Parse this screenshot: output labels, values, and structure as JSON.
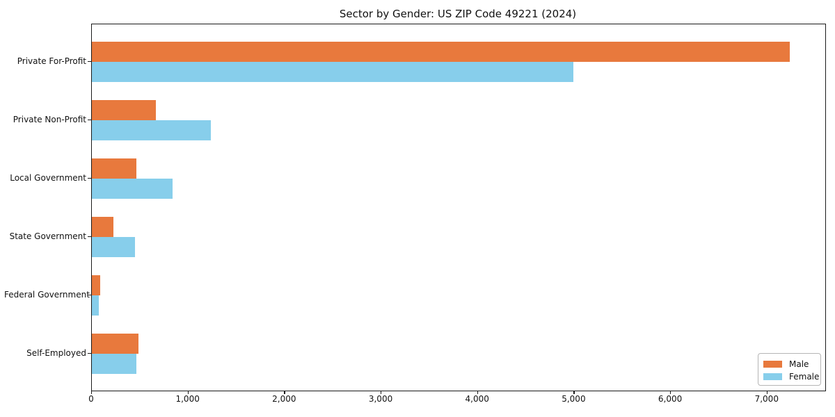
{
  "chart_data": {
    "type": "bar",
    "orientation": "horizontal",
    "title": "Sector by Gender: US ZIP Code 49221 (2024)",
    "categories": [
      "Private For-Profit",
      "Private Non-Profit",
      "Local Government",
      "State Government",
      "Federal Government",
      "Self-Employed"
    ],
    "series": [
      {
        "name": "Male",
        "color": "#e8793d",
        "values": [
          7230,
          660,
          460,
          220,
          85,
          480
        ]
      },
      {
        "name": "Female",
        "color": "#87ceeb",
        "values": [
          4990,
          1230,
          840,
          450,
          70,
          460
        ]
      }
    ],
    "xlim": [
      0,
      7600
    ],
    "x_ticks": [
      0,
      1000,
      2000,
      3000,
      4000,
      5000,
      6000,
      7000
    ],
    "x_tick_labels": [
      "0",
      "1,000",
      "2,000",
      "3,000",
      "4,000",
      "5,000",
      "6,000",
      "7,000"
    ],
    "xlabel": "",
    "ylabel": "",
    "grid": false,
    "legend_position": "lower right",
    "frame_color": "#1a1a1a",
    "background_color": "#ffffff"
  }
}
